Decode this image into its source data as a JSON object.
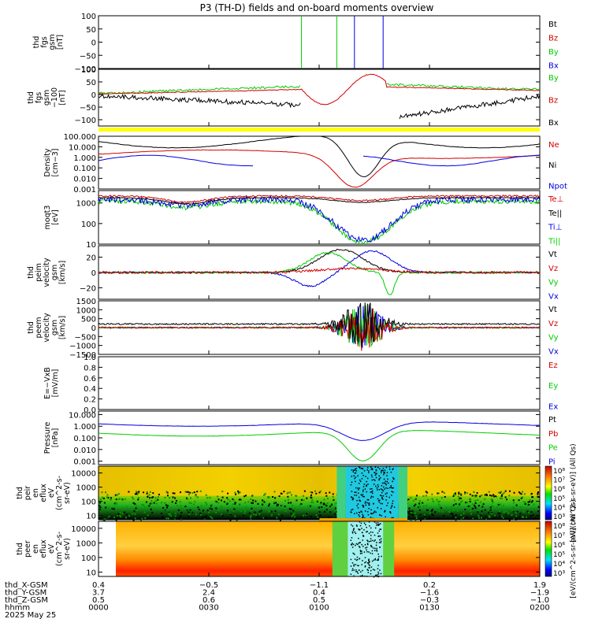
{
  "title": "P3 (TH-D) fields and on-board moments overview",
  "colors": {
    "black": "#000000",
    "red": "#d40000",
    "green": "#00cc00",
    "blue": "#0000e0",
    "yellow": "#ffff00",
    "darkred": "#a00000",
    "orange": "#e8a000"
  },
  "chart_data": [
    {
      "type": "line",
      "name": "fgs-gsm",
      "ylabel": [
        "thd",
        "fgs",
        "gsm",
        "[nT]"
      ],
      "ylim": [
        -100,
        100
      ],
      "ytick_values": [
        100,
        50,
        0,
        -50,
        -100
      ],
      "ticks": [
        "100",
        "50",
        "0",
        "−50",
        "−100"
      ],
      "legend": [
        {
          "label": "Bt",
          "color": "#000000"
        },
        {
          "label": "Bz",
          "color": "#d40000"
        },
        {
          "label": "By",
          "color": "#00cc00"
        },
        {
          "label": "Bx",
          "color": "#0000e0"
        }
      ]
    },
    {
      "type": "line",
      "name": "fgs-gsm-clipped",
      "ylabel": [
        "thd",
        "fgs",
        "gsm",
        "−100",
        "[nT]"
      ],
      "ylim": [
        -125,
        100
      ],
      "ytick_values": [
        100,
        50,
        0,
        -50,
        -100
      ],
      "ticks": [
        "100",
        "50",
        "0",
        "−50",
        "−100"
      ],
      "legend": [
        {
          "label": "By",
          "color": "#00cc00"
        },
        {
          "label": "Bz",
          "color": "#d40000"
        },
        {
          "label": "Bx",
          "color": "#000000"
        }
      ]
    },
    {
      "type": "line",
      "name": "density",
      "scale": "log",
      "ylabel": [
        "Density",
        "[cm−3]"
      ],
      "ylim": [
        0.001,
        100
      ],
      "ytick_values": [
        100,
        10,
        1,
        0.1,
        0.01,
        0.001
      ],
      "ticks": [
        "100.000",
        "10.000",
        "1.000",
        "0.100",
        "0.010",
        "0.001"
      ],
      "legend": [
        {
          "label": "Ne",
          "color": "#d40000"
        },
        {
          "label": "Ni",
          "color": "#000000"
        },
        {
          "label": "Npot",
          "color": "#0000e0"
        }
      ]
    },
    {
      "type": "line",
      "name": "temperature",
      "scale": "log",
      "ylabel": [
        "moqt3",
        "[eV]"
      ],
      "ylim": [
        10,
        4000
      ],
      "ytick_values": [
        1000,
        100,
        10
      ],
      "ticks": [
        "1000",
        "100",
        "10"
      ],
      "legend": [
        {
          "label": "Te⊥",
          "color": "#d40000"
        },
        {
          "label": "Te||",
          "color": "#000000"
        },
        {
          "label": "Ti⊥",
          "color": "#0000e0"
        },
        {
          "label": "Ti||",
          "color": "#00cc00"
        }
      ]
    },
    {
      "type": "line",
      "name": "peim-velocity",
      "ylabel": [
        "thd",
        "peim",
        "velocity",
        "gsm",
        "[km/s]"
      ],
      "ylim": [
        -35,
        35
      ],
      "ytick_values": [
        20,
        0,
        -20
      ],
      "ticks": [
        "20",
        "0",
        "−20"
      ],
      "legend": [
        {
          "label": "Vt",
          "color": "#000000"
        },
        {
          "label": "Vz",
          "color": "#d40000"
        },
        {
          "label": "Vy",
          "color": "#00cc00"
        },
        {
          "label": "Vx",
          "color": "#0000e0"
        }
      ]
    },
    {
      "type": "line",
      "name": "peem-velocity",
      "ylabel": [
        "thd",
        "peem",
        "velocity",
        "gsm",
        "[km/s]"
      ],
      "ylim": [
        -1500,
        1500
      ],
      "ytick_values": [
        1500,
        1000,
        500,
        0,
        -500,
        -1000,
        -1500
      ],
      "ticks": [
        "1500",
        "1000",
        "500",
        "0",
        "−500",
        "−1000",
        "−1500"
      ],
      "legend": [
        {
          "label": "Vt",
          "color": "#000000"
        },
        {
          "label": "Vz",
          "color": "#d40000"
        },
        {
          "label": "Vy",
          "color": "#00cc00"
        },
        {
          "label": "Vx",
          "color": "#0000e0"
        }
      ]
    },
    {
      "type": "line",
      "name": "efield",
      "ylabel": [
        "E=−VxB",
        "[mV/m]"
      ],
      "ylim": [
        0,
        1
      ],
      "ytick_values": [
        1,
        0.8,
        0.6,
        0.4,
        0.2,
        0
      ],
      "ticks": [
        "1.0",
        "0.8",
        "0.6",
        "0.4",
        "0.2",
        "0.0"
      ],
      "legend": [
        {
          "label": "Ez",
          "color": "#d40000"
        },
        {
          "label": "Ey",
          "color": "#00cc00"
        },
        {
          "label": "Ex",
          "color": "#0000e0"
        }
      ]
    },
    {
      "type": "line",
      "name": "pressure",
      "scale": "log",
      "ylabel": [
        "Pressure",
        "[nPa]"
      ],
      "ylim": [
        0.0005,
        20
      ],
      "ytick_values": [
        10,
        1,
        0.1,
        0.01,
        0.001
      ],
      "ticks": [
        "10.000",
        "1.000",
        "0.100",
        "0.010",
        "0.001"
      ],
      "legend": [
        {
          "label": "Pt",
          "color": "#000000"
        },
        {
          "label": "Pb",
          "color": "#d40000"
        },
        {
          "label": "Pe",
          "color": "#00cc00"
        },
        {
          "label": "Pi",
          "color": "#0000e0"
        }
      ]
    },
    {
      "type": "heatmap",
      "name": "peir-eflux",
      "scale": "log",
      "ylabel": [
        "thd",
        "peir",
        "en",
        "eflux",
        "eV",
        "(cm^2-s-",
        "sr-eV)"
      ],
      "ylim": [
        5,
        30000
      ],
      "ytick_values": [
        10000,
        1000,
        100,
        10
      ],
      "ticks": [
        "10000",
        "1000",
        "100",
        "10"
      ],
      "colorbar": {
        "ticks": [
          "10⁸",
          "10⁷",
          "10⁶",
          "10⁵",
          "10⁴",
          "10³"
        ],
        "label": "[eV/(cm^2-s-sr-eV)] (All Qs)"
      }
    },
    {
      "type": "heatmap",
      "name": "peer-eflux",
      "scale": "log",
      "ylabel": [
        "thd",
        "peer",
        "en",
        "eflux",
        "eV",
        "(cm^2-s-",
        "sr-eV)"
      ],
      "ylim": [
        5,
        30000
      ],
      "ytick_values": [
        10000,
        1000,
        100,
        10
      ],
      "ticks": [
        "10000",
        "1000",
        "100",
        "10"
      ],
      "colorbar": {
        "ticks": [
          "10⁸",
          "10⁷",
          "10⁶",
          "10⁵",
          "10⁴",
          "10³"
        ],
        "label": "[eV/(cm^2-s-sr-eV)] (All Qs)"
      }
    }
  ],
  "xaxis": {
    "row_labels": [
      "thd_X-GSM",
      "thd_Y-GSM",
      "thd_Z-GSM",
      "hhmm",
      "2025 May 25"
    ],
    "columns": [
      {
        "values": [
          "0.4",
          "3.7",
          "0.5",
          "0000"
        ]
      },
      {
        "values": [
          "−0.5",
          "2.4",
          "0.6",
          "0030"
        ]
      },
      {
        "values": [
          "−1.1",
          "0.4",
          "0.5",
          "0100"
        ]
      },
      {
        "values": [
          "0.2",
          "−1.6",
          "−0.3",
          "0130"
        ]
      },
      {
        "values": [
          "1.9",
          "−1.9",
          "−1.0",
          "0200"
        ]
      }
    ]
  }
}
